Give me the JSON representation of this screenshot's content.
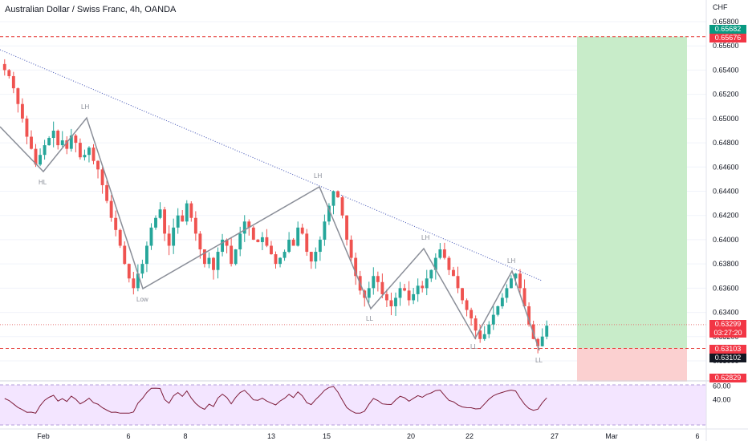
{
  "title": "Australian Dollar / Swiss Franc, 4h, OANDA",
  "currency": "CHF",
  "colors": {
    "up": "#26a69a",
    "down": "#ef5350",
    "grid": "#f0f3fa",
    "trendline": "#3f51b5",
    "pivotLine": "#7b7b7b",
    "rsiLine": "#7e57c2",
    "rsiBg": "#f3e5ff",
    "tpZone": "#c8ecc9",
    "slZone": "#fbd0d0",
    "dashedRed": "#e53935"
  },
  "price_labels": {
    "top_green": "0.65682",
    "top_red": "0.65676",
    "current": "0.63299",
    "countdown": "03:27:20",
    "mid_red": "0.63103",
    "mid_dark": "0.63102",
    "bottom_red": "0.62829"
  },
  "pivot_labels": [
    "LH",
    "HL",
    "LH",
    "Low",
    "LH",
    "LL",
    "LL",
    "LH",
    "LL"
  ],
  "chart_data": {
    "type": "candlestick",
    "title": "Australian Dollar / Swiss Franc, 4h, OANDA",
    "y_axis_ticks": [
      "0.65800",
      "0.65600",
      "0.65400",
      "0.65200",
      "0.65000",
      "0.64800",
      "0.64600",
      "0.64400",
      "0.64200",
      "0.64000",
      "0.63800",
      "0.63600",
      "0.63400",
      "0.63200",
      "0.63000"
    ],
    "ylim": [
      0.629,
      0.659
    ],
    "x_axis_ticks": [
      "Feb",
      "6",
      "8",
      "13",
      "15",
      "20",
      "22",
      "27",
      "Mar",
      "6"
    ],
    "rsi": {
      "ticks": [
        "60.00",
        "40.00"
      ],
      "ylim": [
        20,
        80
      ]
    },
    "trade_levels": {
      "take_profit": 0.65676,
      "entry": 0.63103,
      "stop_loss": 0.62829
    },
    "pivots": [
      {
        "label": "LH",
        "x": 0.1,
        "price": 0.6502
      },
      {
        "label": "HL",
        "x": 0.0,
        "price": 0.6455
      },
      {
        "label": "LH",
        "x": 0.45,
        "price": 0.6445
      },
      {
        "label": "Low",
        "x": 0.2,
        "price": 0.6357
      },
      {
        "label": "LH",
        "x": 0.6,
        "price": 0.6394
      },
      {
        "label": "LL",
        "x": 0.5,
        "price": 0.6343
      },
      {
        "label": "LL",
        "x": 0.65,
        "price": 0.6318
      },
      {
        "label": "LH",
        "x": 0.7,
        "price": 0.6375
      },
      {
        "label": "LL",
        "x": 0.75,
        "price": 0.631
      }
    ],
    "candles_close": [
      0.654,
      0.6535,
      0.6525,
      0.6512,
      0.65,
      0.6485,
      0.6475,
      0.6462,
      0.647,
      0.6478,
      0.6484,
      0.649,
      0.6478,
      0.6482,
      0.6475,
      0.6486,
      0.648,
      0.6468,
      0.647,
      0.6476,
      0.6465,
      0.6458,
      0.6445,
      0.6432,
      0.6418,
      0.6408,
      0.6395,
      0.638,
      0.6368,
      0.636,
      0.6372,
      0.638,
      0.6395,
      0.641,
      0.6418,
      0.6425,
      0.6405,
      0.6395,
      0.641,
      0.642,
      0.6415,
      0.643,
      0.6418,
      0.6405,
      0.6392,
      0.638,
      0.6385,
      0.6375,
      0.639,
      0.64,
      0.6395,
      0.638,
      0.6392,
      0.6405,
      0.6415,
      0.641,
      0.64,
      0.6398,
      0.6402,
      0.6395,
      0.6388,
      0.638,
      0.6385,
      0.639,
      0.64,
      0.6395,
      0.641,
      0.6405,
      0.639,
      0.6382,
      0.639,
      0.64,
      0.6415,
      0.6428,
      0.644,
      0.6435,
      0.642,
      0.64,
      0.6385,
      0.637,
      0.6358,
      0.6352,
      0.636,
      0.637,
      0.6365,
      0.6355,
      0.635,
      0.6345,
      0.6352,
      0.636,
      0.6358,
      0.635,
      0.6355,
      0.6362,
      0.636,
      0.6368,
      0.6375,
      0.6385,
      0.6392,
      0.6385,
      0.6375,
      0.637,
      0.636,
      0.635,
      0.6342,
      0.6335,
      0.6325,
      0.6318,
      0.6322,
      0.633,
      0.6338,
      0.6345,
      0.6352,
      0.636,
      0.6368,
      0.6372,
      0.636,
      0.6345,
      0.633,
      0.6318,
      0.6312,
      0.632,
      0.6329
    ]
  }
}
